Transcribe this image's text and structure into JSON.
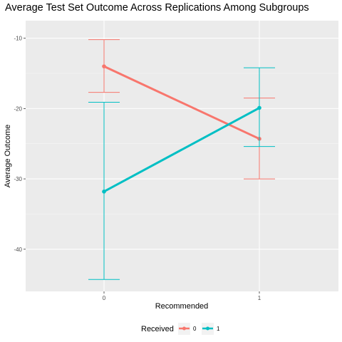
{
  "chart_data": {
    "type": "line",
    "title": "Average Test Set Outcome Across Replications Among Subgroups",
    "xlabel": "Recommended",
    "ylabel": "Average Outcome",
    "categories": [
      "0",
      "1"
    ],
    "ylim": [
      -46,
      -7.5
    ],
    "yticks": [
      -10,
      -20,
      -30,
      -40
    ],
    "ytick_labels": [
      "-10",
      "-20",
      "-30",
      "-40"
    ],
    "grid": true,
    "legend": {
      "title": "Received",
      "position": "bottom"
    },
    "error_bars": true,
    "series": [
      {
        "name": "0",
        "color": "#F8766D",
        "values": [
          -14.0,
          -24.3
        ],
        "lower": [
          -17.7,
          -30.0
        ],
        "upper": [
          -10.2,
          -18.5
        ]
      },
      {
        "name": "1",
        "color": "#00BFC4",
        "values": [
          -31.8,
          -19.9
        ],
        "lower": [
          -44.3,
          -25.4
        ],
        "upper": [
          -19.1,
          -14.2
        ]
      }
    ]
  }
}
